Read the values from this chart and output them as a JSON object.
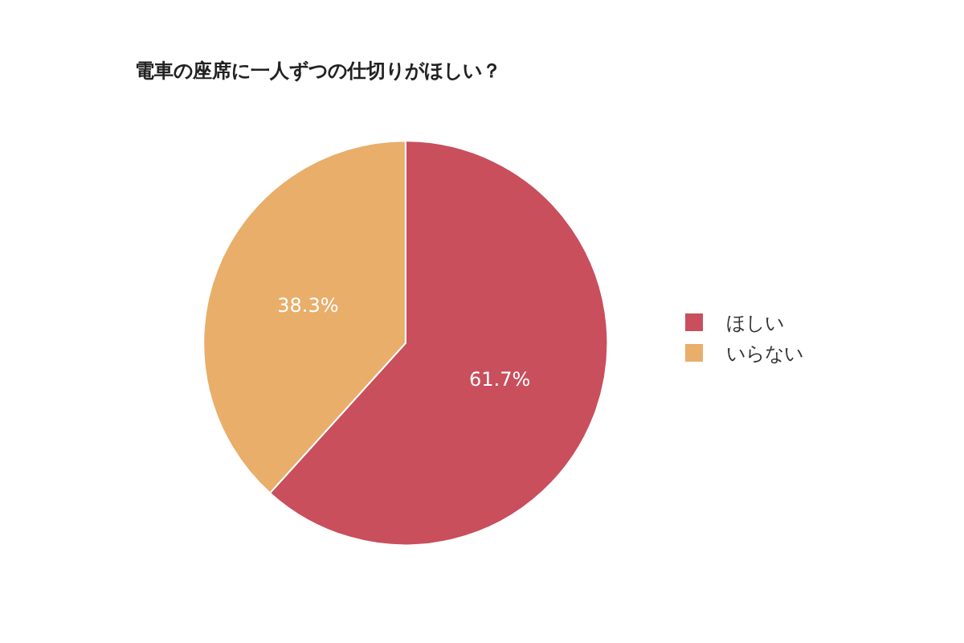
{
  "chart_data": {
    "type": "pie",
    "title": "電車の座席に一人ずつの仕切りがほしい？",
    "categories": [
      "ほしい",
      "いらない"
    ],
    "values": [
      61.7,
      38.3
    ],
    "colors": [
      "#c94f5d",
      "#e8ae6a"
    ],
    "value_labels": [
      "61.7%",
      "38.3%"
    ],
    "legend": "right"
  }
}
